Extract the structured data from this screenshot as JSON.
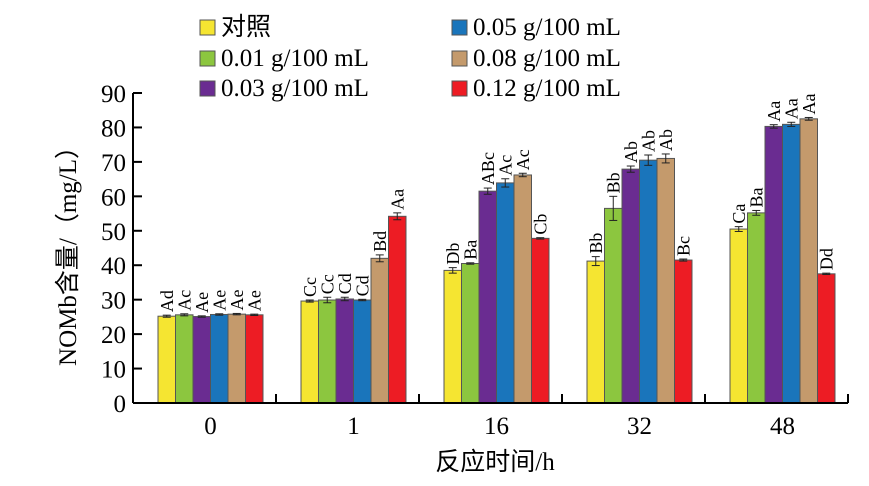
{
  "chart_data": {
    "type": "bar",
    "title": "",
    "xlabel": "反应时间/h",
    "ylabel": "NOMb含量/（mg/L）",
    "ylim": [
      0,
      90
    ],
    "yticks": [
      0,
      10,
      20,
      30,
      40,
      50,
      60,
      70,
      80,
      90
    ],
    "categories": [
      "0",
      "1",
      "16",
      "32",
      "48"
    ],
    "grid": false,
    "legend_position": "top",
    "series": [
      {
        "name": "对照",
        "color": "#f5e531",
        "values": [
          25.2,
          29.6,
          38.5,
          41.2,
          50.5
        ],
        "errors": [
          0.3,
          0.3,
          0.8,
          1.3,
          0.7
        ],
        "labels": [
          "Ad",
          "Cc",
          "Db",
          "Bb",
          "Ca"
        ]
      },
      {
        "name": "0.01 g/100 mL",
        "color": "#8cc63f",
        "values": [
          25.6,
          29.9,
          40.5,
          56.5,
          55.2
        ],
        "errors": [
          0.3,
          0.8,
          0.2,
          3.5,
          0.7
        ],
        "labels": [
          "Ac",
          "Cc",
          "Ba",
          "Bb",
          "Ba"
        ]
      },
      {
        "name": "0.03 g/100 mL",
        "color": "#6a2c91",
        "values": [
          25.1,
          30.2,
          61.5,
          67.9,
          80.3
        ],
        "errors": [
          0.2,
          0.5,
          0.9,
          0.9,
          0.5
        ],
        "labels": [
          "Ae",
          "Cd",
          "ABc",
          "Ab",
          "Aa"
        ]
      },
      {
        "name": "0.05 g/100 mL",
        "color": "#1a75bb",
        "values": [
          25.7,
          29.9,
          63.9,
          70.5,
          80.9
        ],
        "errors": [
          0.2,
          0.2,
          1.2,
          1.5,
          0.6
        ],
        "labels": [
          "Ae",
          "Cd",
          "Ac",
          "Ab",
          "Aa"
        ]
      },
      {
        "name": "0.08 g/100 mL",
        "color": "#c49a6c",
        "values": [
          25.8,
          42.0,
          66.2,
          71.0,
          82.5
        ],
        "errors": [
          0.2,
          1.0,
          0.5,
          1.3,
          0.4
        ],
        "labels": [
          "Ae",
          "Bd",
          "Ac",
          "Ab",
          "Aa"
        ]
      },
      {
        "name": "0.12 g/100 mL",
        "color": "#ed1c24",
        "values": [
          25.6,
          54.2,
          47.8,
          41.5,
          37.5
        ],
        "errors": [
          0.2,
          1.0,
          0.2,
          0.3,
          0.2
        ],
        "labels": [
          "Ae",
          "Aa",
          "Cb",
          "Bc",
          "Dd"
        ]
      }
    ]
  }
}
